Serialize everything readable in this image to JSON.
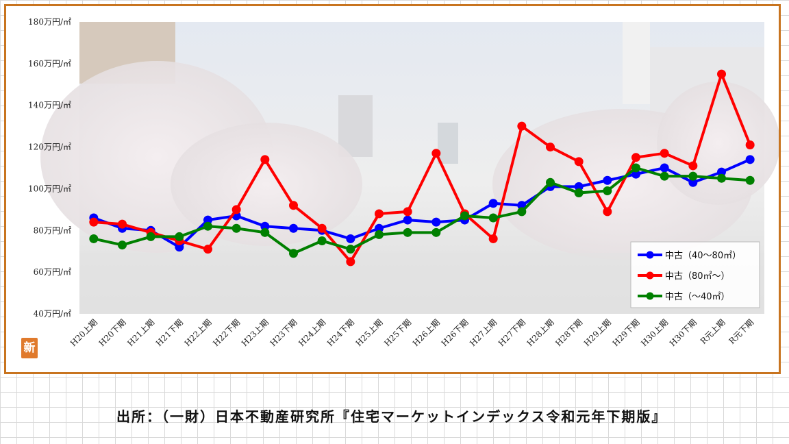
{
  "chart_data": {
    "type": "line",
    "yunit": "万円/㎡",
    "ylim": [
      40,
      180
    ],
    "yticks": [
      40,
      60,
      80,
      100,
      120,
      140,
      160,
      180
    ],
    "ytick_labels": [
      "40万円/㎡",
      "60万円/㎡",
      "80万円/㎡",
      "100万円/㎡",
      "120万円/㎡",
      "140万円/㎡",
      "160万円/㎡",
      "180万円/㎡"
    ],
    "categories": [
      "H20上期",
      "H20下期",
      "H21上期",
      "H21下期",
      "H22上期",
      "H22下期",
      "H23上期",
      "H23下期",
      "H24上期",
      "H24下期",
      "H25上期",
      "H25下期",
      "H26上期",
      "H26下期",
      "H27上期",
      "H27下期",
      "H28上期",
      "H28下期",
      "H29上期",
      "H29下期",
      "H30上期",
      "H30下期",
      "R元上期",
      "R元下期"
    ],
    "series": [
      {
        "name": "中古（40～80㎡）",
        "color": "#0000ff",
        "values": [
          86,
          81,
          80,
          72,
          85,
          87,
          82,
          81,
          80,
          76,
          81,
          85,
          84,
          85,
          93,
          92,
          101,
          101,
          104,
          107,
          110,
          103,
          108,
          114
        ]
      },
      {
        "name": "中古（80㎡～）",
        "color": "#ff0000",
        "values": [
          84,
          83,
          79,
          75,
          71,
          90,
          114,
          92,
          81,
          65,
          88,
          89,
          117,
          88,
          76,
          130,
          120,
          113,
          89,
          115,
          117,
          111,
          155,
          121
        ]
      },
      {
        "name": "中古（～40㎡）",
        "color": "#008000",
        "values": [
          76,
          73,
          77,
          77,
          82,
          81,
          79,
          69,
          75,
          71,
          78,
          79,
          79,
          87,
          86,
          89,
          103,
          98,
          99,
          110,
          106,
          106,
          105,
          104
        ]
      }
    ],
    "grid": false,
    "legend_position": "bottom-right"
  },
  "badge_text": "新",
  "source_text": "出所：（一財）日本不動産研究所『住宅マーケットインデックス令和元年下期版』"
}
